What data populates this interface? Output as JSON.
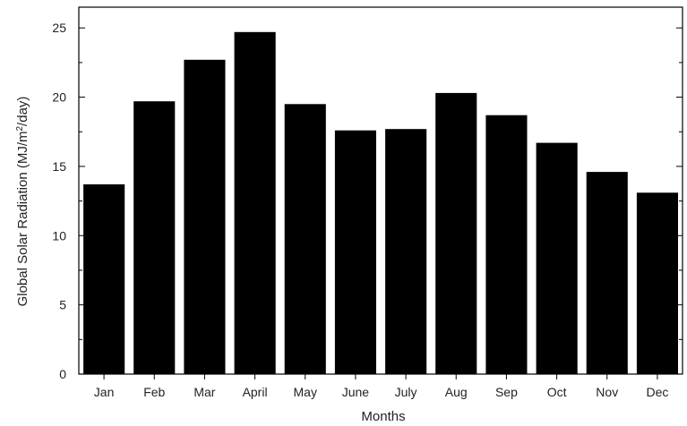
{
  "chart_data": {
    "type": "bar",
    "categories": [
      "Jan",
      "Feb",
      "Mar",
      "April",
      "May",
      "June",
      "July",
      "Aug",
      "Sep",
      "Oct",
      "Nov",
      "Dec"
    ],
    "values": [
      13.7,
      19.7,
      22.7,
      24.7,
      19.5,
      17.6,
      17.7,
      20.3,
      18.7,
      16.7,
      14.6,
      13.1
    ],
    "xlabel": "Months",
    "ylabel_main": "Global Solar Radiation (MJ/m",
    "ylabel_sup": "2",
    "ylabel_tail": "/day)",
    "ylim": [
      0,
      26.5
    ],
    "yticks": [
      0,
      5,
      10,
      15,
      20,
      25
    ],
    "grid": false,
    "bar_color": "#000000"
  }
}
